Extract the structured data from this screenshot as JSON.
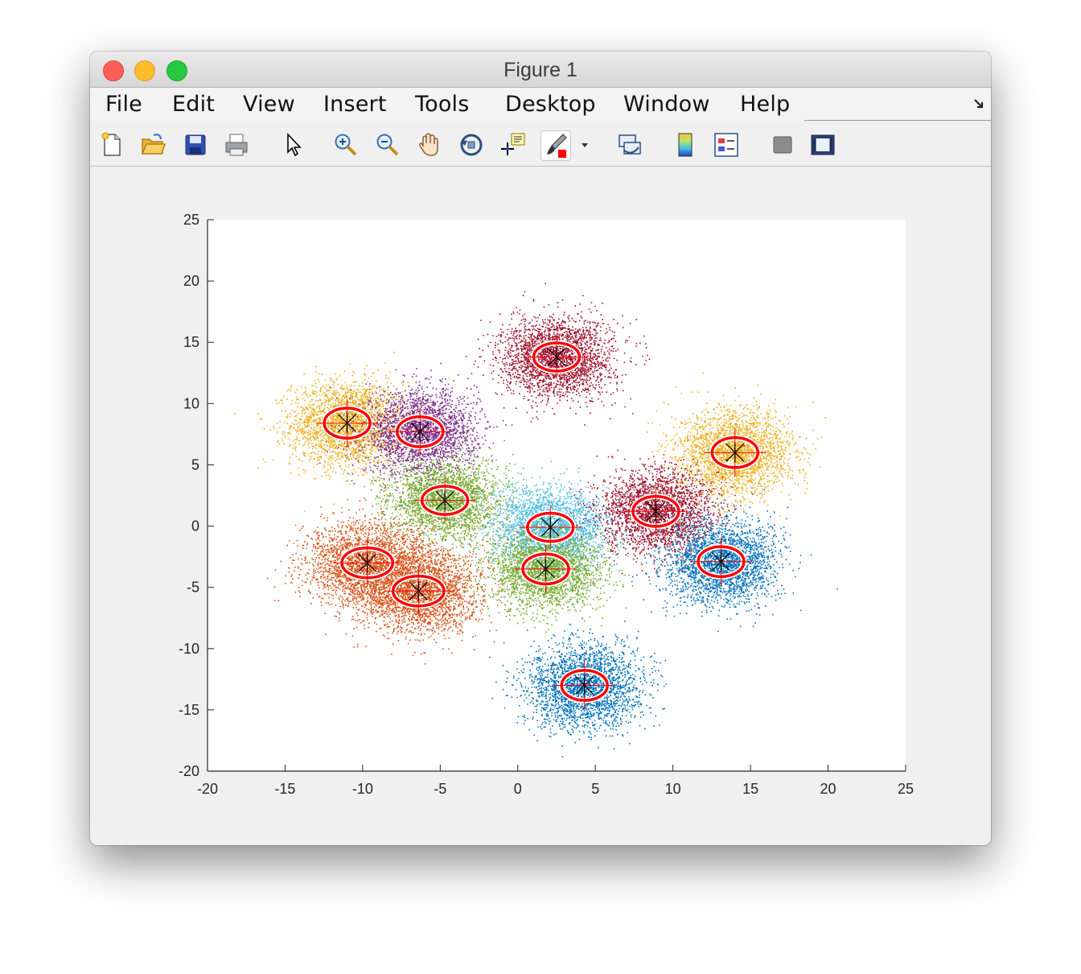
{
  "window": {
    "title": "Figure 1"
  },
  "menu": [
    "File",
    "Edit",
    "View",
    "Insert",
    "Tools",
    "Desktop",
    "Window",
    "Help"
  ],
  "toolbar_icons": [
    "new-figure-icon",
    "open-file-icon",
    "save-icon",
    "print-icon",
    "edit-plot-arrow-icon",
    "zoom-in-icon",
    "zoom-out-icon",
    "pan-hand-icon",
    "rotate-3d-icon",
    "data-cursor-icon",
    "brush-icon",
    "brush-dropdown-icon",
    "link-plot-icon",
    "insert-colorbar-icon",
    "insert-legend-icon",
    "hide-plot-tools-icon",
    "show-plot-tools-icon"
  ],
  "chart_data": {
    "type": "scatter",
    "xlim": [
      -20,
      25
    ],
    "ylim": [
      -20,
      25
    ],
    "xticks": [
      "-20",
      "-15",
      "-10",
      "-5",
      "0",
      "5",
      "10",
      "15",
      "20",
      "25"
    ],
    "yticks": [
      "-20",
      "-15",
      "-10",
      "-5",
      "0",
      "5",
      "10",
      "15",
      "20",
      "25"
    ],
    "grid": false,
    "clusters": [
      {
        "color": "#EDB120",
        "x": -11.0,
        "y": 8.4,
        "sx": 1.8,
        "sy": 1.7
      },
      {
        "color": "#7E2F8E",
        "x": -6.3,
        "y": 7.7,
        "sx": 1.8,
        "sy": 1.7
      },
      {
        "color": "#A2142F",
        "x": 2.5,
        "y": 13.8,
        "sx": 1.8,
        "sy": 1.6
      },
      {
        "color": "#EDB120",
        "x": 14.0,
        "y": 6.0,
        "sx": 1.8,
        "sy": 1.7
      },
      {
        "color": "#77AC30",
        "x": -4.7,
        "y": 2.1,
        "sx": 1.8,
        "sy": 1.6
      },
      {
        "color": "#4DBEEE",
        "x": 2.1,
        "y": -0.1,
        "sx": 1.8,
        "sy": 1.6
      },
      {
        "color": "#A2142F",
        "x": 8.9,
        "y": 1.2,
        "sx": 1.8,
        "sy": 1.7
      },
      {
        "color": "#D95319",
        "x": -9.7,
        "y": -3.0,
        "sx": 2.0,
        "sy": 1.7
      },
      {
        "color": "#D95319",
        "x": -6.4,
        "y": -5.3,
        "sx": 2.0,
        "sy": 1.7
      },
      {
        "color": "#77AC30",
        "x": 1.8,
        "y": -3.5,
        "sx": 1.8,
        "sy": 1.7
      },
      {
        "color": "#0072BD",
        "x": 13.1,
        "y": -2.9,
        "sx": 1.8,
        "sy": 1.7
      },
      {
        "color": "#0072BD",
        "x": 4.3,
        "y": -13.0,
        "sx": 1.8,
        "sy": 1.7
      }
    ],
    "ellipse_color": "#ff0000",
    "center_marker_color": "#000000",
    "center_marker": "asterisk"
  }
}
